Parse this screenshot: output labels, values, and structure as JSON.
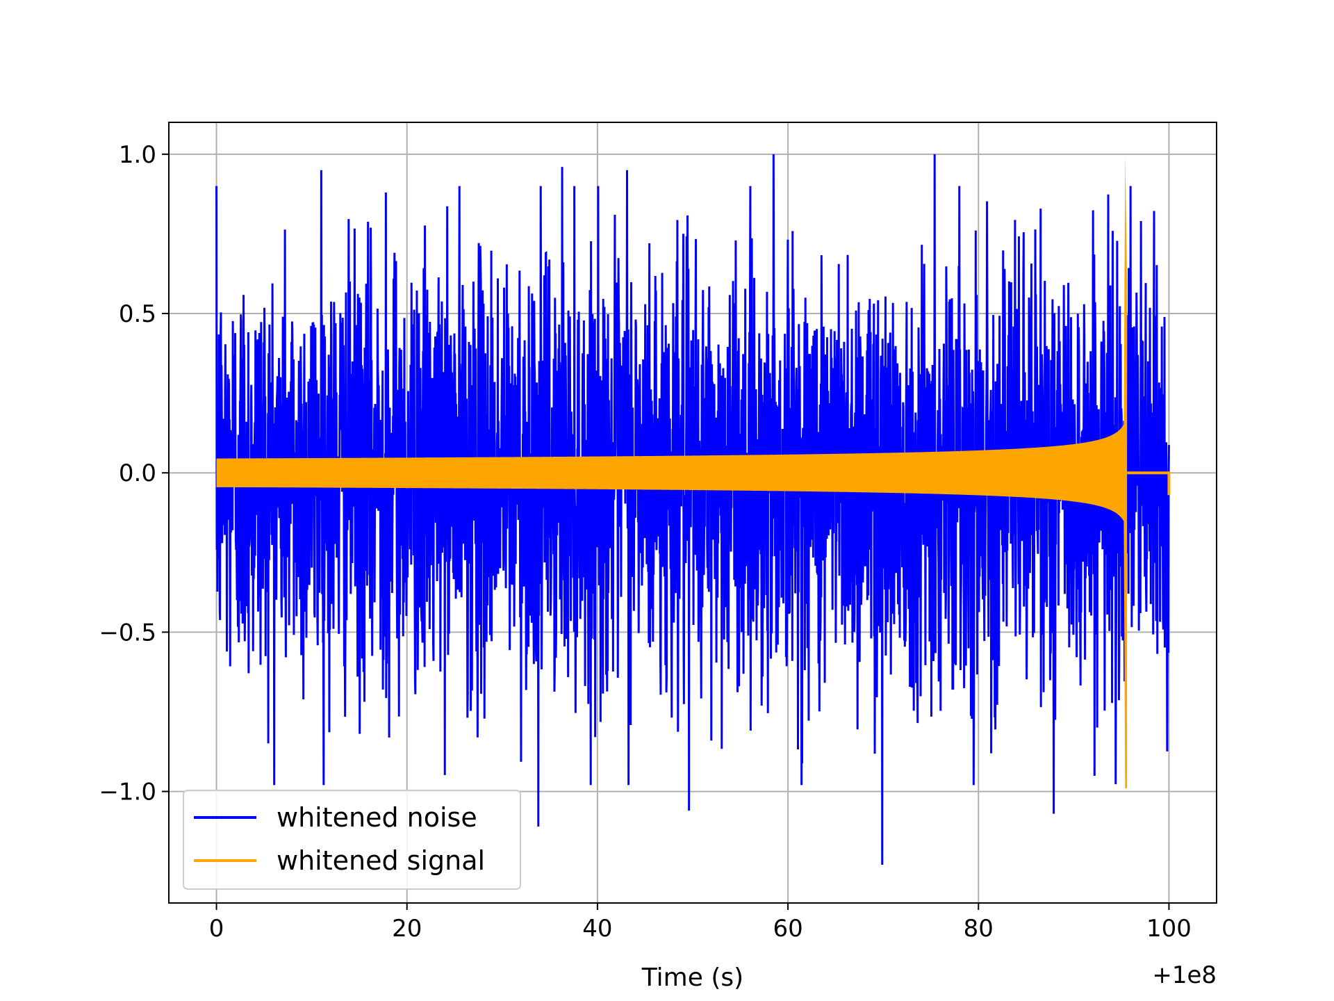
{
  "chart_data": {
    "type": "line",
    "xlabel": "Time (s)",
    "ylabel": "",
    "x_offset_label": "+1e8",
    "xlim": [
      -5,
      105
    ],
    "ylim": [
      -1.35,
      1.1
    ],
    "xticks": [
      0,
      20,
      40,
      60,
      80,
      100
    ],
    "yticks": [
      -1.0,
      -0.5,
      0.0,
      0.5,
      1.0
    ],
    "xtick_labels": [
      "0",
      "20",
      "40",
      "60",
      "80",
      "100"
    ],
    "ytick_labels": [
      "−1.0",
      "−0.5",
      "0.0",
      "0.5",
      "1.0"
    ],
    "grid": true,
    "legend_position": "lower-left",
    "series": [
      {
        "name": "whitened noise",
        "color": "#0000ff",
        "x_range": [
          0,
          100
        ],
        "typical_band": [
          -0.6,
          0.6
        ],
        "peaks": [
          {
            "x": 11,
            "y": 0.95
          },
          {
            "x": 17.8,
            "y": 0.88
          },
          {
            "x": 36.3,
            "y": 0.96
          },
          {
            "x": 43.1,
            "y": 0.95
          },
          {
            "x": 58.5,
            "y": 1.0
          },
          {
            "x": 75.4,
            "y": 1.0
          },
          {
            "x": 33.8,
            "y": -1.11
          },
          {
            "x": 49.6,
            "y": -1.06
          },
          {
            "x": 69.9,
            "y": -1.23
          },
          {
            "x": 87.9,
            "y": -1.07
          }
        ]
      },
      {
        "name": "whitened signal",
        "color": "#ffa500",
        "x_range": [
          0,
          95.6
        ],
        "envelope_start": 0.045,
        "peak": {
          "x": 95.4,
          "y": 1.0
        },
        "trough": {
          "x": 95.6,
          "y": -0.99
        },
        "tail": {
          "x_range": [
            95.6,
            100
          ],
          "y": 0.0
        }
      }
    ]
  }
}
